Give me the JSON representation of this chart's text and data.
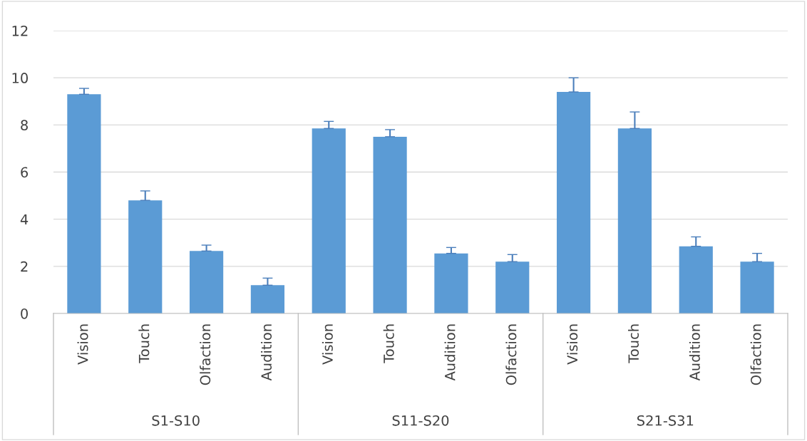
{
  "chart_data": {
    "type": "bar",
    "categories": [
      "Vision",
      "Touch",
      "Olfaction",
      "Audition",
      "Vision",
      "Touch",
      "Audition",
      "Olfaction",
      "Vision",
      "Touch",
      "Audition",
      "Olfaction"
    ],
    "values": [
      9.3,
      4.8,
      2.65,
      1.2,
      7.85,
      7.5,
      2.55,
      2.2,
      9.4,
      7.85,
      2.85,
      2.2
    ],
    "errors": [
      [
        9.3,
        9.55
      ],
      [
        4.8,
        5.2
      ],
      [
        2.65,
        2.9
      ],
      [
        1.2,
        1.5
      ],
      [
        7.85,
        8.15
      ],
      [
        7.5,
        7.8
      ],
      [
        2.55,
        2.8
      ],
      [
        2.2,
        2.5
      ],
      [
        9.4,
        10.0
      ],
      [
        7.85,
        8.55
      ],
      [
        2.85,
        3.25
      ],
      [
        2.2,
        2.55
      ]
    ],
    "color": "#5b9bd5",
    "ylim": [
      0,
      12
    ],
    "yticks": [
      0,
      2,
      4,
      6,
      8,
      10,
      12
    ],
    "grid": "y",
    "annotations": [
      "S1-S10",
      "S11-S20",
      "S21-S31"
    ]
  }
}
